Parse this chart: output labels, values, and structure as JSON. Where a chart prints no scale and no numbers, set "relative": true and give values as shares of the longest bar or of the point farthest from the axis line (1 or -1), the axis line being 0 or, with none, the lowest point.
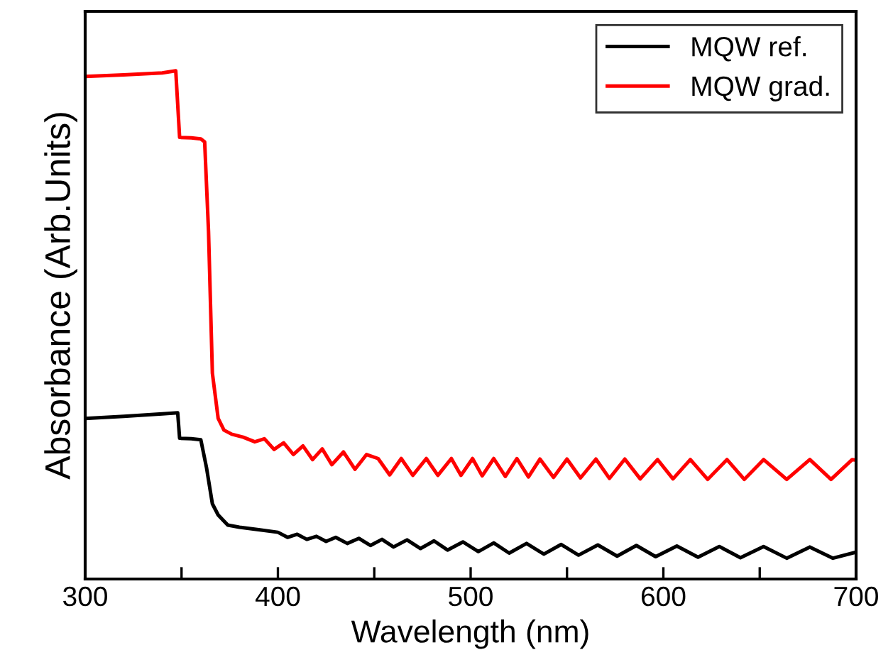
{
  "chart_data": {
    "type": "line",
    "relative": true,
    "xlabel": "Wavelength (nm)",
    "ylabel": "Absorbance (Arb.Units)",
    "xlim": [
      300,
      700
    ],
    "xticks": [
      300,
      {
        "value": 350,
        "label": null
      },
      400,
      {
        "value": 450,
        "label": null
      },
      500,
      {
        "value": 550,
        "label": null
      },
      600,
      {
        "value": 650,
        "label": null
      },
      700
    ],
    "legend": "top right",
    "grid": false,
    "tick_labels": "x",
    "series": [
      {
        "name": "MQW ref.",
        "color": "#000000",
        "x": [
          300,
          320,
          340,
          348,
          349,
          355,
          360,
          363,
          366,
          369,
          374,
          380,
          390,
          400,
          405,
          410,
          415,
          420,
          425,
          430,
          436,
          442,
          448,
          454,
          460,
          467,
          474,
          481,
          488,
          496,
          504,
          512,
          520,
          529,
          538,
          547,
          556,
          566,
          576,
          586,
          596,
          607,
          618,
          629,
          640,
          652,
          664,
          676,
          688,
          700
        ],
        "values": [
          0.316,
          0.32,
          0.325,
          0.327,
          0.277,
          0.276,
          0.274,
          0.218,
          0.148,
          0.126,
          0.106,
          0.102,
          0.097,
          0.092,
          0.082,
          0.088,
          0.078,
          0.084,
          0.074,
          0.082,
          0.07,
          0.08,
          0.066,
          0.078,
          0.063,
          0.077,
          0.06,
          0.075,
          0.057,
          0.073,
          0.054,
          0.071,
          0.051,
          0.07,
          0.049,
          0.068,
          0.047,
          0.067,
          0.045,
          0.066,
          0.044,
          0.065,
          0.043,
          0.064,
          0.042,
          0.064,
          0.041,
          0.063,
          0.041,
          0.053
        ]
      },
      {
        "name": "MQW grad.",
        "color": "#ff0000",
        "x": [
          300,
          320,
          340,
          347,
          349,
          355,
          360,
          362,
          364,
          366,
          369,
          372,
          376,
          382,
          388,
          393,
          398,
          403,
          408,
          413,
          418,
          423,
          428,
          434,
          440,
          446,
          452,
          458,
          464,
          470,
          477,
          483,
          490,
          495,
          501,
          506,
          512,
          518,
          524,
          530,
          536,
          543,
          550,
          557,
          565,
          572,
          580,
          588,
          597,
          605,
          614,
          623,
          633,
          642,
          652,
          664,
          676,
          687,
          698,
          700
        ],
        "values": [
          0.989,
          0.992,
          0.996,
          1.0,
          0.869,
          0.868,
          0.866,
          0.86,
          0.684,
          0.405,
          0.316,
          0.293,
          0.285,
          0.279,
          0.27,
          0.276,
          0.255,
          0.268,
          0.245,
          0.262,
          0.235,
          0.256,
          0.225,
          0.25,
          0.216,
          0.245,
          0.237,
          0.205,
          0.237,
          0.204,
          0.237,
          0.204,
          0.237,
          0.204,
          0.237,
          0.203,
          0.237,
          0.202,
          0.237,
          0.201,
          0.236,
          0.2,
          0.236,
          0.199,
          0.236,
          0.198,
          0.236,
          0.197,
          0.235,
          0.197,
          0.235,
          0.196,
          0.235,
          0.196,
          0.235,
          0.196,
          0.235,
          0.196,
          0.235,
          0.234
        ]
      }
    ]
  }
}
